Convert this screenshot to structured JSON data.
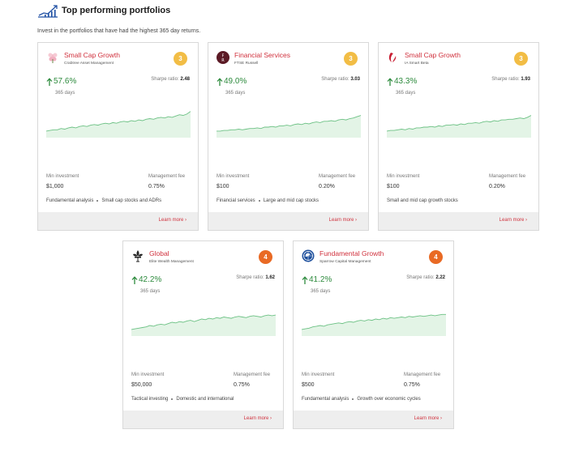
{
  "header": {
    "title": "Top performing portfolios",
    "subtitle": "Invest in the portfolios that have had the highest 365 day returns."
  },
  "labels": {
    "period": "365 days",
    "sharpe": "Sharpe ratio:",
    "min_investment": "Min investment",
    "management_fee": "Management fee",
    "learn_more": "Learn more ›"
  },
  "colors": {
    "accent_red": "#d0313d",
    "return_green": "#2e8b3e",
    "spark_line": "#6cc184",
    "spark_fill": "#e3f4e6",
    "badge_yellow": "#f2bd45",
    "badge_orange": "#e96a24"
  },
  "portfolios": [
    {
      "name": "Small Cap Growth",
      "manager": "Crabtree Asset Management",
      "logo": "flower-logo-icon",
      "rank": "3",
      "return": "57.6%",
      "sharpe": "2.48",
      "min_investment": "$1,000",
      "fee": "0.75%",
      "tags": [
        "Fundamental analysis",
        "Small cap stocks and ADRs"
      ],
      "spark": [
        10,
        11,
        12,
        12,
        14,
        13,
        15,
        16,
        15,
        17,
        18,
        17,
        19,
        20,
        19,
        21,
        22,
        21,
        23,
        22,
        24,
        25,
        24,
        26,
        25,
        27,
        26,
        28,
        29,
        28,
        30,
        31,
        30,
        32,
        31,
        33,
        35,
        34,
        36,
        40
      ]
    },
    {
      "name": "Financial Services",
      "manager": "FTSE Russell",
      "logo": "fr-logo-icon",
      "rank": "3",
      "return": "49.0%",
      "sharpe": "3.03",
      "min_investment": "$100",
      "fee": "0.20%",
      "tags": [
        "Financial services",
        "Large and mid cap stocks"
      ],
      "spark": [
        10,
        10,
        11,
        11,
        12,
        12,
        13,
        12,
        13,
        14,
        14,
        15,
        14,
        16,
        16,
        17,
        16,
        18,
        18,
        19,
        18,
        20,
        21,
        20,
        22,
        21,
        23,
        24,
        23,
        25,
        25,
        26,
        25,
        27,
        28,
        27,
        29,
        30,
        32,
        34
      ]
    },
    {
      "name": "Small Cap Growth",
      "manager": "IA Smart Beta",
      "logo": "ia-logo-icon",
      "rank": "3",
      "return": "43.3%",
      "sharpe": "1.93",
      "min_investment": "$100",
      "fee": "0.20%",
      "tags": [
        "Small and mid cap growth stocks"
      ],
      "spark": [
        10,
        11,
        11,
        12,
        13,
        12,
        14,
        13,
        15,
        15,
        16,
        16,
        17,
        16,
        18,
        17,
        19,
        19,
        20,
        19,
        21,
        20,
        22,
        22,
        23,
        22,
        24,
        25,
        24,
        26,
        25,
        27,
        27,
        28,
        28,
        29,
        30,
        29,
        31,
        34
      ]
    },
    {
      "name": "Global",
      "manager": "Elite Wealth Management",
      "logo": "fleur-logo-icon",
      "rank": "4",
      "return": "42.2%",
      "sharpe": "1.62",
      "min_investment": "$50,000",
      "fee": "0.75%",
      "tags": [
        "Tactical investing",
        "Domestic and international"
      ],
      "spark": [
        10,
        11,
        12,
        13,
        14,
        16,
        15,
        17,
        18,
        17,
        19,
        21,
        20,
        22,
        21,
        23,
        24,
        22,
        24,
        26,
        25,
        27,
        26,
        28,
        27,
        29,
        28,
        27,
        29,
        30,
        29,
        28,
        30,
        31,
        30,
        29,
        31,
        32,
        31,
        32
      ]
    },
    {
      "name": "Fundamental Growth",
      "manager": "Sparrow Capital Management",
      "logo": "globe-logo-icon",
      "rank": "4",
      "return": "41.2%",
      "sharpe": "2.22",
      "min_investment": "$500",
      "fee": "0.75%",
      "tags": [
        "Fundamental analysis",
        "Growth over economic cycles"
      ],
      "spark": [
        10,
        11,
        12,
        14,
        15,
        16,
        15,
        17,
        18,
        19,
        20,
        19,
        21,
        22,
        21,
        23,
        24,
        23,
        25,
        24,
        26,
        25,
        27,
        26,
        28,
        27,
        28,
        29,
        28,
        30,
        29,
        30,
        31,
        30,
        31,
        32,
        31,
        32,
        33,
        33
      ]
    }
  ]
}
